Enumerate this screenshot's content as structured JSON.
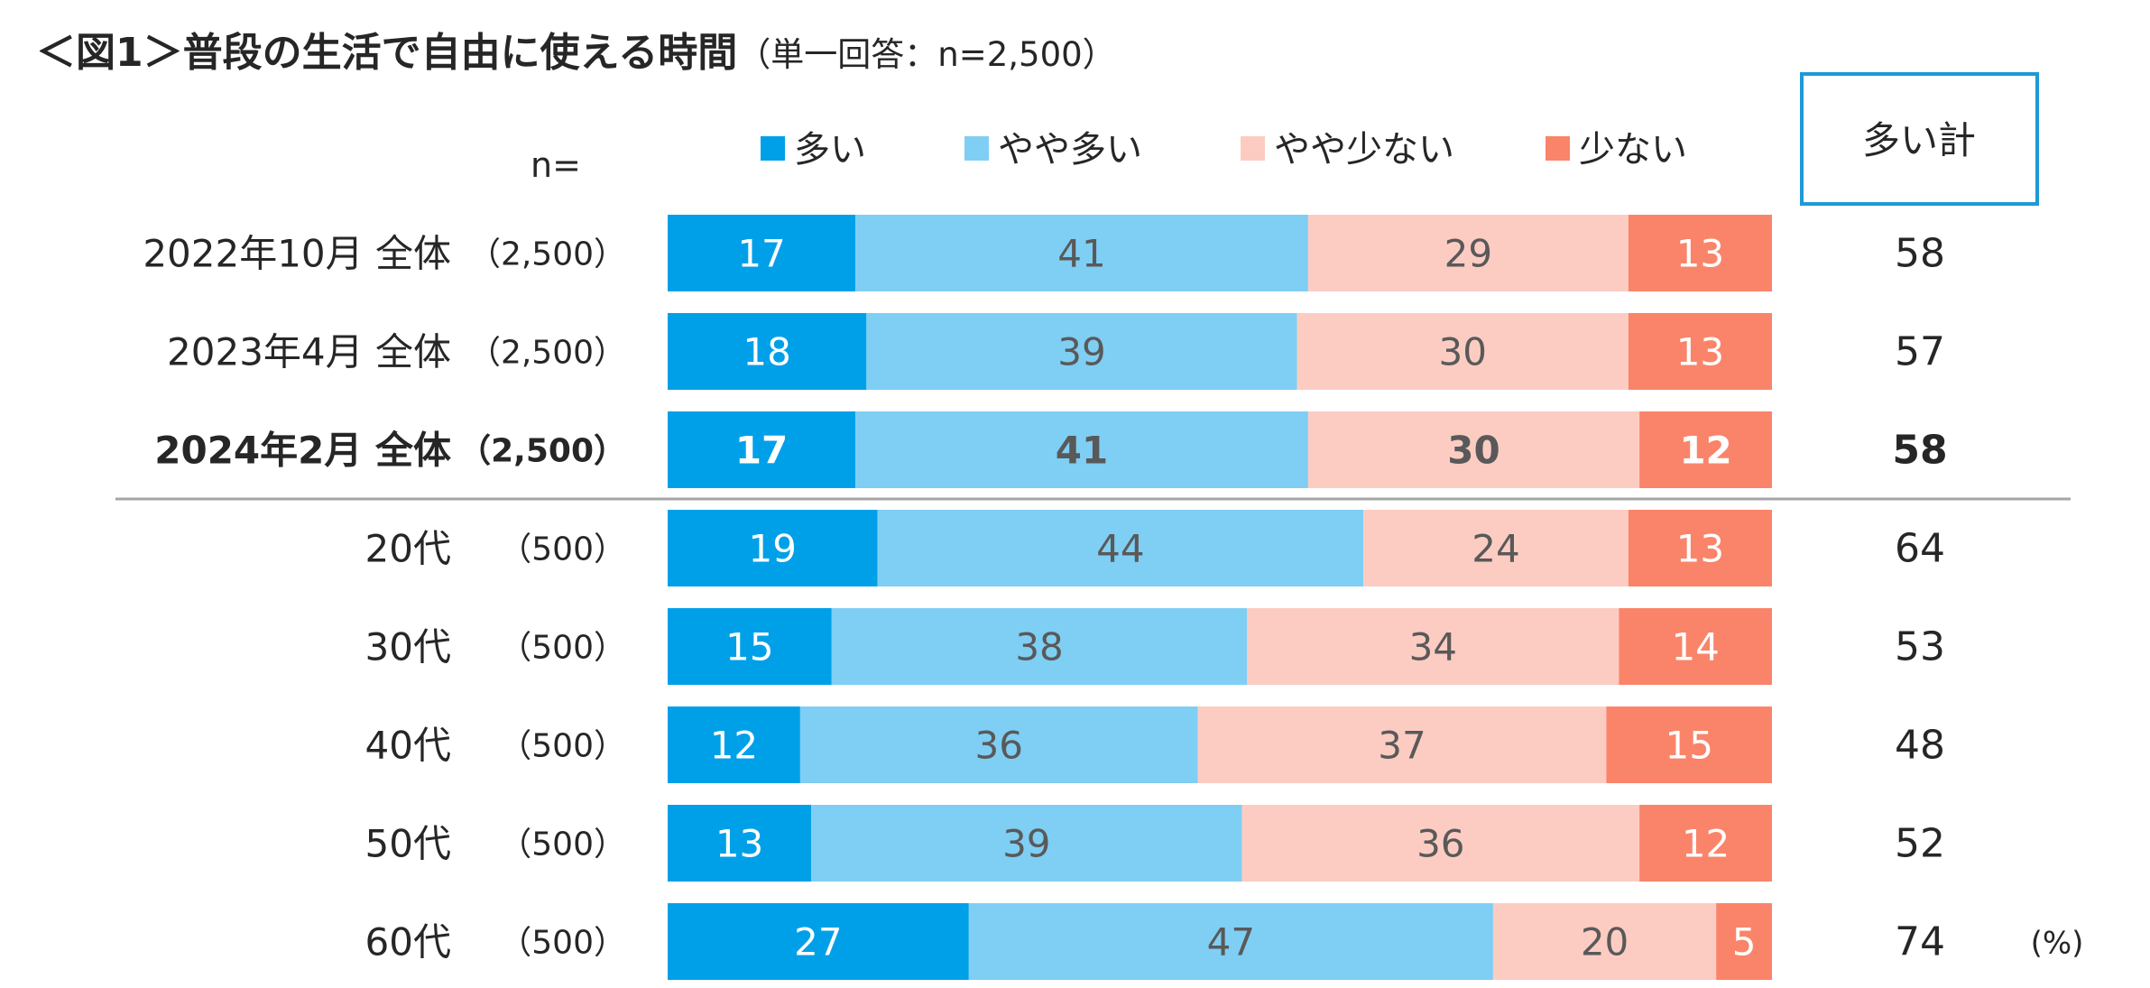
{
  "title": {
    "main": "＜図1＞普段の生活で自由に使える時間",
    "sub": "（単一回答：n=2,500）"
  },
  "chart_data": {
    "type": "bar",
    "orientation": "horizontal-stacked-100",
    "title": "＜図1＞普段の生活で自由に使える時間",
    "subtitle": "（単一回答：n=2,500）",
    "n_header": "n=",
    "total_header": "多い計",
    "unit": "(%)",
    "series": [
      {
        "name": "多い",
        "color": "#00A0E9",
        "text_color": "#ffffff"
      },
      {
        "name": "やや多い",
        "color": "#7FCEF4",
        "text_color": "#595959"
      },
      {
        "name": "やや少ない",
        "color": "#FCCCC2",
        "text_color": "#595959"
      },
      {
        "name": "少ない",
        "color": "#FA8469",
        "text_color": "#ffffff"
      }
    ],
    "rows": [
      {
        "label": "2022年10月 全体",
        "n": "（2,500）",
        "values": [
          17,
          41,
          29,
          13
        ],
        "total": 58,
        "bold": false
      },
      {
        "label": "2023年4月 全体",
        "n": "（2,500）",
        "values": [
          18,
          39,
          30,
          13
        ],
        "total": 57,
        "bold": false
      },
      {
        "label": "2024年2月 全体",
        "n": "（2,500）",
        "values": [
          17,
          41,
          30,
          12
        ],
        "total": 58,
        "bold": true
      },
      {
        "label": "20代",
        "n": "（500）",
        "values": [
          19,
          44,
          24,
          13
        ],
        "total": 64,
        "bold": false
      },
      {
        "label": "30代",
        "n": "（500）",
        "values": [
          15,
          38,
          34,
          14
        ],
        "total": 53,
        "bold": false
      },
      {
        "label": "40代",
        "n": "（500）",
        "values": [
          12,
          36,
          37,
          15
        ],
        "total": 48,
        "bold": false
      },
      {
        "label": "50代",
        "n": "（500）",
        "values": [
          13,
          39,
          36,
          12
        ],
        "total": 52,
        "bold": false
      },
      {
        "label": "60代",
        "n": "（500）",
        "values": [
          27,
          47,
          20,
          5
        ],
        "total": 74,
        "bold": false
      }
    ],
    "separator_after_row": 2
  }
}
